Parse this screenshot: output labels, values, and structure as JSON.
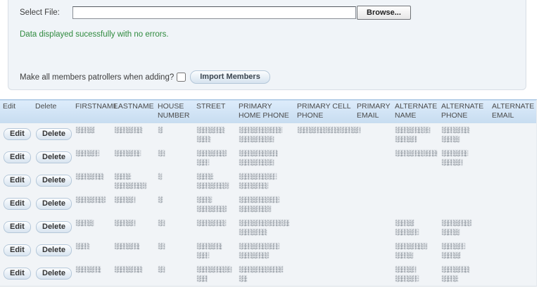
{
  "panel": {
    "select_file_label": "Select File:",
    "file_input_value": "",
    "browse_button_label": "Browse...",
    "status_message": "Data displayed sucessfully with no errors.",
    "patroller_question": "Make all members patrollers when adding?",
    "patroller_checkbox_checked": false,
    "import_button_label": "Import Members"
  },
  "table": {
    "edit_button_label": "Edit",
    "delete_button_label": "Delete",
    "headers": [
      "Edit",
      "Delete",
      "FIRSTNAME",
      "LASTNAME",
      "HOUSE NUMBER",
      "STREET",
      "PRIMARY HOME PHONE",
      "PRIMARY CELL PHONE",
      "PRIMARY EMAIL",
      "ALTERNATE NAME",
      "ALTERNATE PHONE",
      "ALTERNATE EMAIL"
    ],
    "column_keys": [
      "firstname",
      "lastname",
      "house_number",
      "street",
      "primary_home_phone",
      "primary_cell_phone",
      "primary_email",
      "alternate_name",
      "alternate_phone",
      "alternate_email"
    ],
    "rows": [
      {
        "redacted_cells": {
          "firstname": [
            28
          ],
          "lastname": [
            40
          ],
          "house_number": [
            8
          ],
          "street": [
            40,
            20
          ],
          "primary_home_phone": [
            62,
            50
          ],
          "primary_cell_phone": [
            90
          ],
          "primary_email": [],
          "alternate_name": [
            50,
            32
          ],
          "alternate_phone": [
            40,
            26
          ],
          "alternate_email": []
        }
      },
      {
        "redacted_cells": {
          "firstname": [
            34
          ],
          "lastname": [
            38
          ],
          "house_number": [
            10
          ],
          "street": [
            44,
            18
          ],
          "primary_home_phone": [
            56,
            50
          ],
          "primary_cell_phone": [],
          "primary_email": [],
          "alternate_name": [
            60
          ],
          "alternate_phone": [
            38,
            30
          ],
          "alternate_email": []
        }
      },
      {
        "redacted_cells": {
          "firstname": [
            40
          ],
          "lastname": [
            24,
            46
          ],
          "house_number": [
            6
          ],
          "street": [
            24,
            46
          ],
          "primary_home_phone": [
            54,
            42
          ],
          "primary_cell_phone": [],
          "primary_email": [],
          "alternate_name": [],
          "alternate_phone": [],
          "alternate_email": []
        }
      },
      {
        "redacted_cells": {
          "firstname": [
            44
          ],
          "lastname": [
            30
          ],
          "house_number": [
            8
          ],
          "street": [
            22,
            44
          ],
          "primary_home_phone": [
            58,
            46
          ],
          "primary_cell_phone": [],
          "primary_email": [],
          "alternate_name": [],
          "alternate_phone": [],
          "alternate_email": []
        }
      },
      {
        "redacted_cells": {
          "firstname": [
            26
          ],
          "lastname": [
            30
          ],
          "house_number": [
            10
          ],
          "street": [
            42
          ],
          "primary_home_phone": [
            72,
            40
          ],
          "primary_cell_phone": [],
          "primary_email": [],
          "alternate_name": [
            28,
            34
          ],
          "alternate_phone": [
            44,
            26
          ],
          "alternate_email": []
        }
      },
      {
        "redacted_cells": {
          "firstname": [
            20
          ],
          "lastname": [
            36
          ],
          "house_number": [
            10
          ],
          "street": [
            36,
            18
          ],
          "primary_home_phone": [
            58,
            44
          ],
          "primary_cell_phone": [],
          "primary_email": [],
          "alternate_name": [
            46,
            26
          ],
          "alternate_phone": [
            34,
            28
          ],
          "alternate_email": []
        }
      },
      {
        "redacted_cells": {
          "firstname": [
            36
          ],
          "lastname": [
            40
          ],
          "house_number": [
            10
          ],
          "street": [
            50,
            16
          ],
          "primary_home_phone": [
            64,
            12
          ],
          "primary_cell_phone": [],
          "primary_email": [],
          "alternate_name": [
            30,
            34
          ],
          "alternate_phone": [
            40,
            24
          ],
          "alternate_email": []
        }
      }
    ]
  },
  "colors": {
    "status_green": "#2f8a3e",
    "header_blue_top": "#ddecfb",
    "header_blue_bottom": "#c7dcf0",
    "panel_bg": "#f0f4f8",
    "table_body_bg": "#f1f4f7",
    "button_border": "#b4c7d9"
  }
}
